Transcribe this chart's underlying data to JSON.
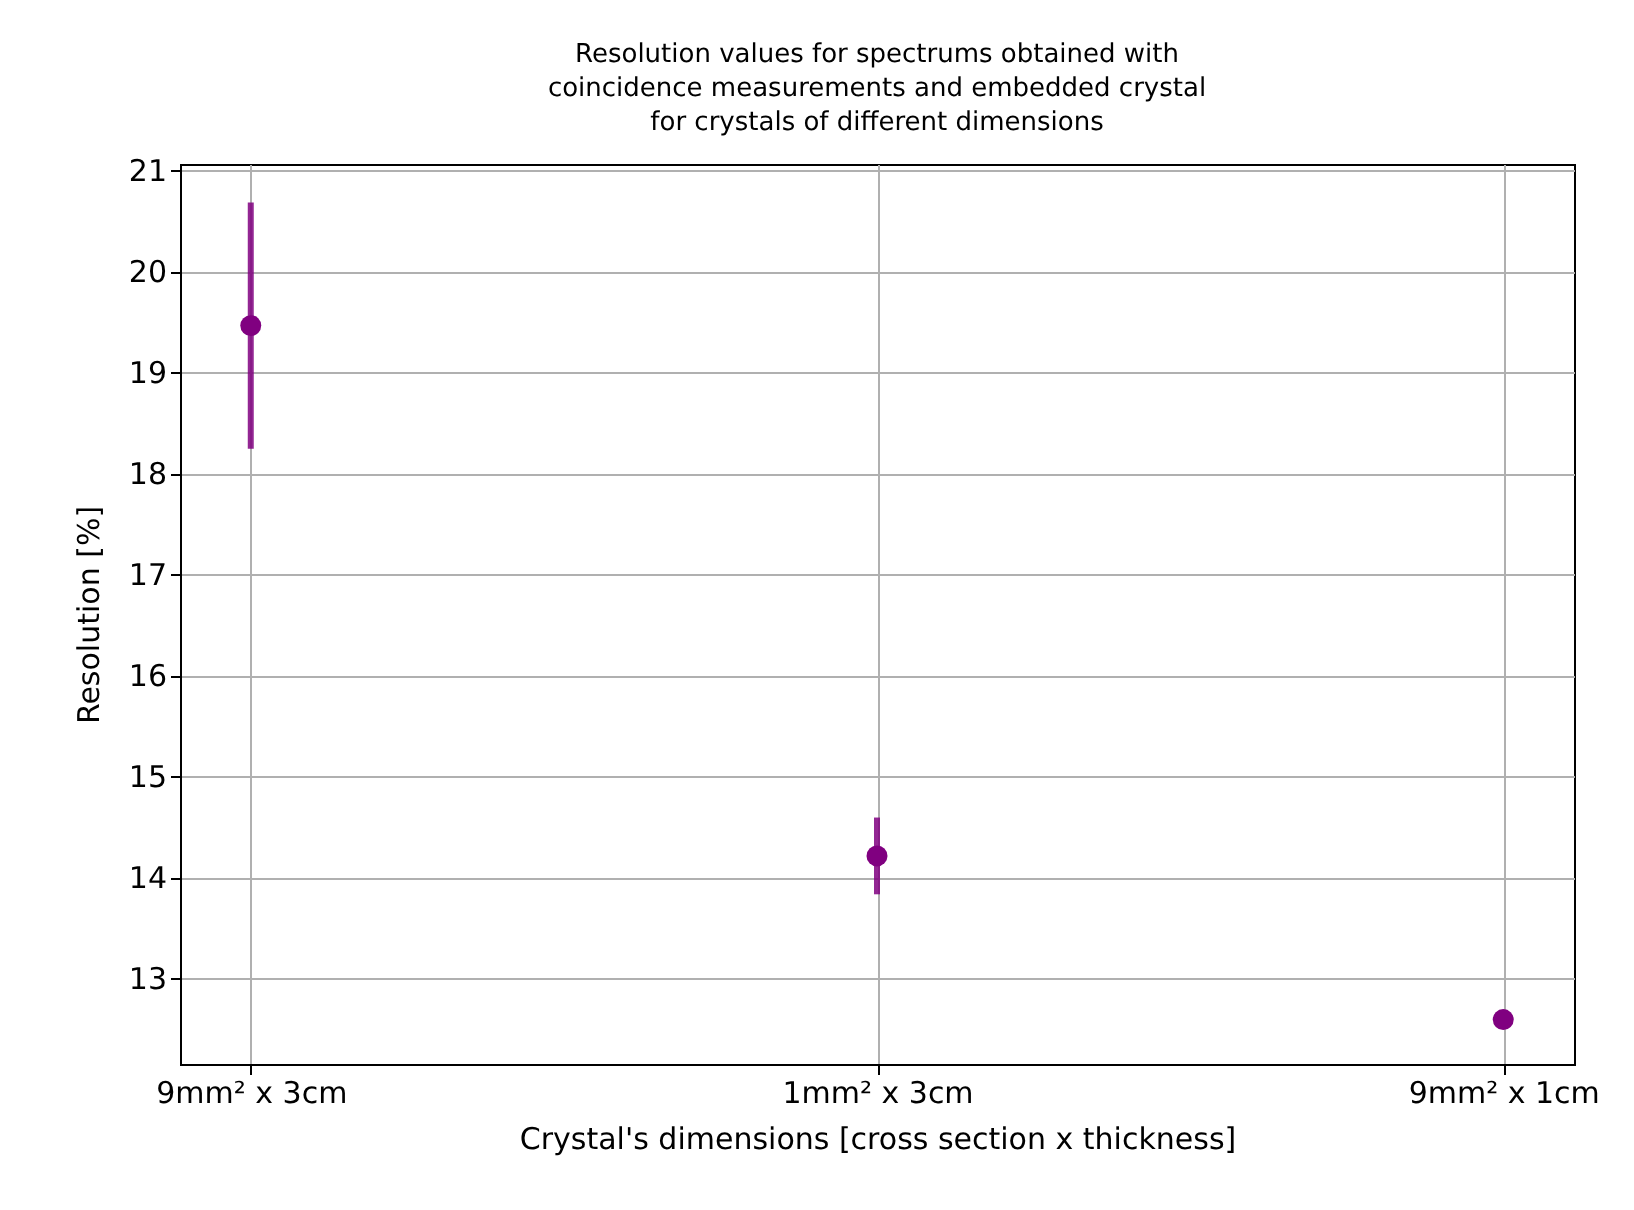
{
  "chart_data": {
    "type": "scatter",
    "title": [
      "Resolution values for spectrums obtained with",
      "coincidence measurements and embedded crystal",
      "for crystals of different dimensions"
    ],
    "xlabel": "Crystal's dimensions [cross section x thickness]",
    "ylabel": "Resolution [%]",
    "categories": [
      "9mm² x 3cm",
      "1mm² x 3cm",
      "9mm² x 1cm"
    ],
    "series": [
      {
        "color": "#800080",
        "values": [
          19.46,
          14.21,
          12.59
        ],
        "errors": [
          1.22,
          0.38,
          null
        ]
      }
    ],
    "ylim": [
      12.15,
      21.06
    ],
    "yticks": [
      13,
      14,
      15,
      16,
      17,
      18,
      19,
      20,
      21
    ],
    "grid": true,
    "marker": "circle"
  }
}
